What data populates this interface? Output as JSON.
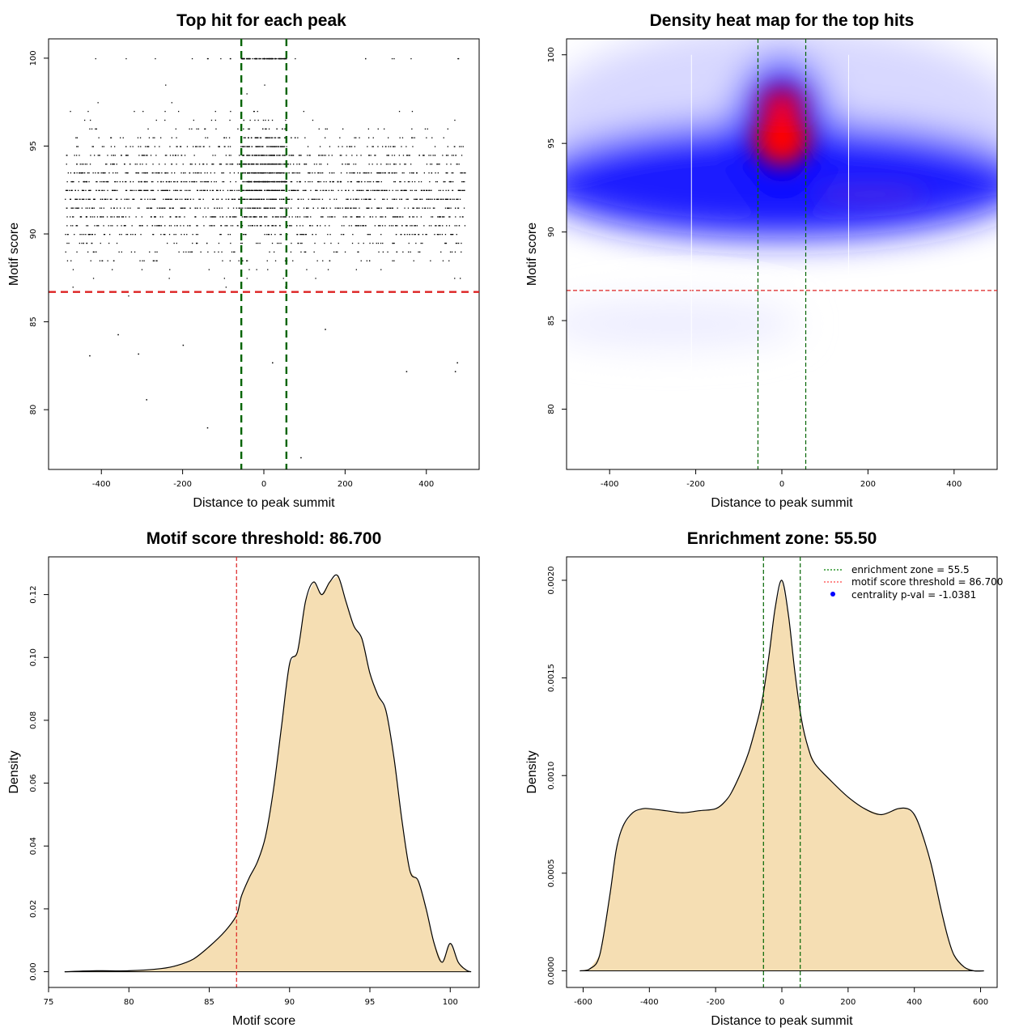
{
  "chart_data": [
    {
      "type": "scatter",
      "title": "Top hit for each peak",
      "xlabel": "Distance to peak summit",
      "ylabel": "Motif score",
      "xlim": [
        -530,
        530
      ],
      "ylim": [
        76.6,
        101.1
      ],
      "xticks": [
        -400,
        -200,
        0,
        200,
        400
      ],
      "yticks": [
        80,
        85,
        90,
        95,
        100
      ],
      "vlines": [
        -55.5,
        55.5
      ],
      "hline": 86.7,
      "colors": {
        "points": "#000000",
        "vlines": "#006400",
        "hline": "#dd2222"
      },
      "points_description": "Several thousand top-hit points spread over distance -500..500 with motif scores mostly 86-99, denser near summit (0) and at scores 100",
      "outliers": [
        {
          "x": -430,
          "y": 83.1
        },
        {
          "x": -360,
          "y": 84.3
        },
        {
          "x": -310,
          "y": 83.2
        },
        {
          "x": -290,
          "y": 80.6
        },
        {
          "x": -140,
          "y": 79.0
        },
        {
          "x": 90,
          "y": 77.3
        },
        {
          "x": 20,
          "y": 82.7
        },
        {
          "x": 350,
          "y": 82.2
        },
        {
          "x": 475,
          "y": 82.7
        },
        {
          "x": 470,
          "y": 82.2
        },
        {
          "x": -200,
          "y": 83.7
        },
        {
          "x": 150,
          "y": 84.6
        }
      ]
    },
    {
      "type": "heatmap",
      "title": "Density heat map for the top hits",
      "xlabel": "Distance to peak summit",
      "ylabel": "Motif score",
      "xlim": [
        -500,
        500
      ],
      "ylim": [
        76.6,
        100.9
      ],
      "xticks": [
        -400,
        -200,
        0,
        200,
        400
      ],
      "yticks": [
        80,
        85,
        90,
        95,
        100
      ],
      "vlines": [
        -55.5,
        55.5
      ],
      "hline": 86.7,
      "colors": {
        "low": "#ffffff",
        "mid": "#0000ff",
        "high": "#ff0000",
        "vlines": "#006400",
        "hline": "#dd2222"
      },
      "hotspot": {
        "x": 5,
        "y": 94.6
      }
    },
    {
      "type": "area",
      "title": "Motif score threshold: 86.700",
      "xlabel": "Motif score",
      "ylabel": "Density",
      "xlim": [
        75,
        101.8
      ],
      "ylim": [
        -0.005,
        0.132
      ],
      "xticks": [
        75,
        80,
        85,
        90,
        95,
        100
      ],
      "yticks": [
        0.0,
        0.02,
        0.04,
        0.06,
        0.08,
        0.1,
        0.12
      ],
      "ytick_labels": [
        "0.00",
        "0.02",
        "0.04",
        "0.06",
        "0.08",
        "0.10",
        "0.12"
      ],
      "vline": 86.7,
      "colors": {
        "fill": "#f5deb3",
        "line": "#000000",
        "vline": "#dd2222"
      },
      "x": [
        76,
        78,
        80,
        82,
        83,
        84,
        85,
        86,
        86.7,
        87,
        87.5,
        88,
        88.5,
        89,
        89.5,
        90,
        90.5,
        91,
        91.5,
        92,
        92.5,
        93,
        93.5,
        94,
        94.5,
        95,
        95.5,
        96,
        96.5,
        97,
        97.5,
        98,
        98.5,
        99,
        99.5,
        100,
        100.5,
        101,
        101.3
      ],
      "y": [
        0.0,
        0.0003,
        0.0003,
        0.001,
        0.002,
        0.004,
        0.008,
        0.013,
        0.018,
        0.024,
        0.03,
        0.035,
        0.043,
        0.058,
        0.078,
        0.098,
        0.102,
        0.118,
        0.124,
        0.12,
        0.124,
        0.126,
        0.118,
        0.11,
        0.106,
        0.095,
        0.088,
        0.083,
        0.068,
        0.048,
        0.032,
        0.029,
        0.02,
        0.009,
        0.003,
        0.009,
        0.003,
        0.0005,
        0.0
      ]
    },
    {
      "type": "area",
      "title": "Enrichment zone: 55.50",
      "xlabel": "Distance to peak summit",
      "ylabel": "Density",
      "xlim": [
        -650,
        650
      ],
      "ylim": [
        -8.5e-05,
        0.00212
      ],
      "xticks": [
        -600,
        -400,
        -200,
        0,
        200,
        400,
        600
      ],
      "yticks": [
        0.0,
        0.0005,
        0.001,
        0.0015,
        0.002
      ],
      "ytick_labels": [
        "0.0000",
        "0.0005",
        "0.0010",
        "0.0015",
        "0.0020"
      ],
      "vlines": [
        -55.5,
        55.5
      ],
      "colors": {
        "fill": "#f5deb3",
        "line": "#000000",
        "vlines": "#006400",
        "legend_zone": "#008000",
        "legend_threshold": "#ff4444",
        "legend_pval": "#0000ff"
      },
      "x": [
        -610,
        -580,
        -550,
        -520,
        -500,
        -480,
        -450,
        -420,
        -400,
        -350,
        -300,
        -250,
        -200,
        -170,
        -150,
        -120,
        -100,
        -80,
        -60,
        -40,
        -20,
        0,
        20,
        40,
        60,
        80,
        100,
        150,
        200,
        250,
        300,
        350,
        380,
        400,
        420,
        450,
        480,
        500,
        520,
        550,
        580,
        610
      ],
      "y": [
        0.0,
        1e-05,
        8e-05,
        0.00038,
        0.00062,
        0.00074,
        0.00081,
        0.00083,
        0.00083,
        0.00082,
        0.00081,
        0.00082,
        0.00083,
        0.00087,
        0.00092,
        0.00103,
        0.00112,
        0.00124,
        0.00138,
        0.0016,
        0.00186,
        0.002,
        0.00182,
        0.00152,
        0.00128,
        0.00114,
        0.00106,
        0.00097,
        0.00089,
        0.00083,
        0.0008,
        0.00083,
        0.00083,
        0.0008,
        0.00072,
        0.00055,
        0.00032,
        0.00018,
        8e-05,
        2e-05,
        0.0,
        0.0
      ],
      "legend": [
        {
          "label": "enrichment zone = 55.5",
          "style": "dotted-line"
        },
        {
          "label": "motif score threshold = 86.700",
          "style": "dotted-line"
        },
        {
          "label": "centrality p-val = -1.0381",
          "style": "point"
        }
      ]
    }
  ]
}
